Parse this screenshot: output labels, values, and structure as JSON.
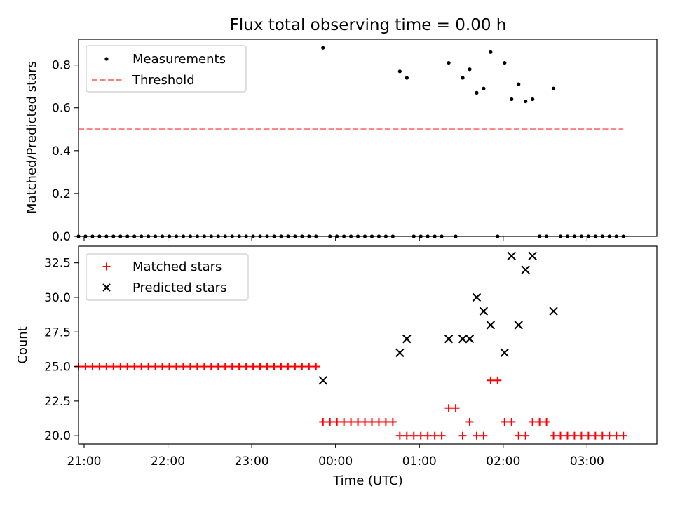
{
  "chart_data": [
    {
      "type": "scatter",
      "title": "Flux total observing time = 0.00 h",
      "ylabel": "Matched/Predicted stars",
      "xlabel": "",
      "x_unit": "time (UTC)",
      "xlim": [
        "20:56",
        "03:50"
      ],
      "ylim": [
        0.0,
        0.92
      ],
      "yticks": [
        "0.0",
        "0.2",
        "0.4",
        "0.6",
        "0.8"
      ],
      "ytick_values": [
        0.0,
        0.2,
        0.4,
        0.6,
        0.8
      ],
      "xticks": [
        "21:00",
        "22:00",
        "23:00",
        "00:00",
        "01:00",
        "02:00",
        "03:00"
      ],
      "legend": {
        "placement": "top-left",
        "entries": [
          "Measurements",
          "Threshold"
        ]
      },
      "series": [
        {
          "name": "Measurements",
          "marker": "dot",
          "color": "#000000",
          "points": [
            [
              "20:56",
              0.0
            ],
            [
              "21:01",
              0.0
            ],
            [
              "21:06",
              0.0
            ],
            [
              "21:11",
              0.0
            ],
            [
              "21:16",
              0.0
            ],
            [
              "21:21",
              0.0
            ],
            [
              "21:26",
              0.0
            ],
            [
              "21:31",
              0.0
            ],
            [
              "21:36",
              0.0
            ],
            [
              "21:41",
              0.0
            ],
            [
              "21:46",
              0.0
            ],
            [
              "21:51",
              0.0
            ],
            [
              "21:56",
              0.0
            ],
            [
              "22:01",
              0.0
            ],
            [
              "22:06",
              0.0
            ],
            [
              "22:11",
              0.0
            ],
            [
              "22:16",
              0.0
            ],
            [
              "22:21",
              0.0
            ],
            [
              "22:26",
              0.0
            ],
            [
              "22:31",
              0.0
            ],
            [
              "22:36",
              0.0
            ],
            [
              "22:41",
              0.0
            ],
            [
              "22:46",
              0.0
            ],
            [
              "22:51",
              0.0
            ],
            [
              "22:56",
              0.0
            ],
            [
              "23:01",
              0.0
            ],
            [
              "23:06",
              0.0
            ],
            [
              "23:11",
              0.0
            ],
            [
              "23:16",
              0.0
            ],
            [
              "23:21",
              0.0
            ],
            [
              "23:26",
              0.0
            ],
            [
              "23:31",
              0.0
            ],
            [
              "23:36",
              0.0
            ],
            [
              "23:41",
              0.0
            ],
            [
              "23:46",
              0.0
            ],
            [
              "23:51",
              0.88
            ],
            [
              "23:56",
              0.0
            ],
            [
              "00:01",
              0.0
            ],
            [
              "00:06",
              0.0
            ],
            [
              "00:11",
              0.0
            ],
            [
              "00:16",
              0.0
            ],
            [
              "00:21",
              0.0
            ],
            [
              "00:26",
              0.0
            ],
            [
              "00:31",
              0.0
            ],
            [
              "00:36",
              0.0
            ],
            [
              "00:41",
              0.0
            ],
            [
              "00:46",
              0.77
            ],
            [
              "00:51",
              0.74
            ],
            [
              "00:56",
              0.0
            ],
            [
              "01:01",
              0.0
            ],
            [
              "01:06",
              0.0
            ],
            [
              "01:11",
              0.0
            ],
            [
              "01:16",
              0.0
            ],
            [
              "01:21",
              0.81
            ],
            [
              "01:26",
              0.0
            ],
            [
              "01:31",
              0.74
            ],
            [
              "01:36",
              0.78
            ],
            [
              "01:41",
              0.67
            ],
            [
              "01:46",
              0.69
            ],
            [
              "01:51",
              0.86
            ],
            [
              "01:56",
              0.0
            ],
            [
              "02:01",
              0.81
            ],
            [
              "02:06",
              0.64
            ],
            [
              "02:11",
              0.71
            ],
            [
              "02:16",
              0.63
            ],
            [
              "02:21",
              0.64
            ],
            [
              "02:26",
              0.0
            ],
            [
              "02:31",
              0.0
            ],
            [
              "02:36",
              0.69
            ],
            [
              "02:41",
              0.0
            ],
            [
              "02:46",
              0.0
            ],
            [
              "02:51",
              0.0
            ],
            [
              "02:56",
              0.0
            ],
            [
              "03:01",
              0.0
            ],
            [
              "03:06",
              0.0
            ],
            [
              "03:11",
              0.0
            ],
            [
              "03:16",
              0.0
            ],
            [
              "03:21",
              0.0
            ],
            [
              "03:26",
              0.0
            ]
          ]
        },
        {
          "name": "Threshold",
          "marker": "dashed-line",
          "color": "#ff7f7f",
          "points": [
            [
              "20:56",
              0.5
            ],
            [
              "03:26",
              0.5
            ]
          ]
        }
      ]
    },
    {
      "type": "scatter",
      "title": "",
      "ylabel": "Count",
      "xlabel": "Time (UTC)",
      "x_unit": "time (UTC)",
      "xlim": [
        "20:56",
        "03:50"
      ],
      "ylim": [
        19.4,
        33.7
      ],
      "yticks": [
        "20.0",
        "22.5",
        "25.0",
        "27.5",
        "30.0",
        "32.5"
      ],
      "ytick_values": [
        20.0,
        22.5,
        25.0,
        27.5,
        30.0,
        32.5
      ],
      "xticks": [
        "21:00",
        "22:00",
        "23:00",
        "00:00",
        "01:00",
        "02:00",
        "03:00"
      ],
      "legend": {
        "placement": "top-left",
        "entries": [
          "Matched stars",
          "Predicted stars"
        ]
      },
      "series": [
        {
          "name": "Matched stars",
          "marker": "plus",
          "color": "#ff0000",
          "points": [
            [
              "20:56",
              25
            ],
            [
              "21:01",
              25
            ],
            [
              "21:06",
              25
            ],
            [
              "21:11",
              25
            ],
            [
              "21:16",
              25
            ],
            [
              "21:21",
              25
            ],
            [
              "21:26",
              25
            ],
            [
              "21:31",
              25
            ],
            [
              "21:36",
              25
            ],
            [
              "21:41",
              25
            ],
            [
              "21:46",
              25
            ],
            [
              "21:51",
              25
            ],
            [
              "21:56",
              25
            ],
            [
              "22:01",
              25
            ],
            [
              "22:06",
              25
            ],
            [
              "22:11",
              25
            ],
            [
              "22:16",
              25
            ],
            [
              "22:21",
              25
            ],
            [
              "22:26",
              25
            ],
            [
              "22:31",
              25
            ],
            [
              "22:36",
              25
            ],
            [
              "22:41",
              25
            ],
            [
              "22:46",
              25
            ],
            [
              "22:51",
              25
            ],
            [
              "22:56",
              25
            ],
            [
              "23:01",
              25
            ],
            [
              "23:06",
              25
            ],
            [
              "23:11",
              25
            ],
            [
              "23:16",
              25
            ],
            [
              "23:21",
              25
            ],
            [
              "23:26",
              25
            ],
            [
              "23:31",
              25
            ],
            [
              "23:36",
              25
            ],
            [
              "23:41",
              25
            ],
            [
              "23:46",
              25
            ],
            [
              "23:51",
              21
            ],
            [
              "23:56",
              21
            ],
            [
              "00:01",
              21
            ],
            [
              "00:06",
              21
            ],
            [
              "00:11",
              21
            ],
            [
              "00:16",
              21
            ],
            [
              "00:21",
              21
            ],
            [
              "00:26",
              21
            ],
            [
              "00:31",
              21
            ],
            [
              "00:36",
              21
            ],
            [
              "00:41",
              21
            ],
            [
              "00:46",
              20
            ],
            [
              "00:51",
              20
            ],
            [
              "00:56",
              20
            ],
            [
              "01:01",
              20
            ],
            [
              "01:06",
              20
            ],
            [
              "01:11",
              20
            ],
            [
              "01:16",
              20
            ],
            [
              "01:21",
              22
            ],
            [
              "01:26",
              22
            ],
            [
              "01:31",
              20
            ],
            [
              "01:36",
              21
            ],
            [
              "01:41",
              20
            ],
            [
              "01:46",
              20
            ],
            [
              "01:51",
              24
            ],
            [
              "01:56",
              24
            ],
            [
              "02:01",
              21
            ],
            [
              "02:06",
              21
            ],
            [
              "02:11",
              20
            ],
            [
              "02:16",
              20
            ],
            [
              "02:21",
              21
            ],
            [
              "02:26",
              21
            ],
            [
              "02:31",
              21
            ],
            [
              "02:36",
              20
            ],
            [
              "02:41",
              20
            ],
            [
              "02:46",
              20
            ],
            [
              "02:51",
              20
            ],
            [
              "02:56",
              20
            ],
            [
              "03:01",
              20
            ],
            [
              "03:06",
              20
            ],
            [
              "03:11",
              20
            ],
            [
              "03:16",
              20
            ],
            [
              "03:21",
              20
            ],
            [
              "03:26",
              20
            ]
          ]
        },
        {
          "name": "Predicted stars",
          "marker": "x",
          "color": "#000000",
          "points": [
            [
              "23:51",
              24
            ],
            [
              "00:46",
              26
            ],
            [
              "00:51",
              27
            ],
            [
              "01:21",
              27
            ],
            [
              "01:31",
              27
            ],
            [
              "01:36",
              27
            ],
            [
              "01:41",
              30
            ],
            [
              "01:46",
              29
            ],
            [
              "01:51",
              28
            ],
            [
              "02:01",
              26
            ],
            [
              "02:06",
              33
            ],
            [
              "02:11",
              28
            ],
            [
              "02:16",
              32
            ],
            [
              "02:21",
              33
            ],
            [
              "02:36",
              29
            ]
          ]
        }
      ]
    }
  ]
}
